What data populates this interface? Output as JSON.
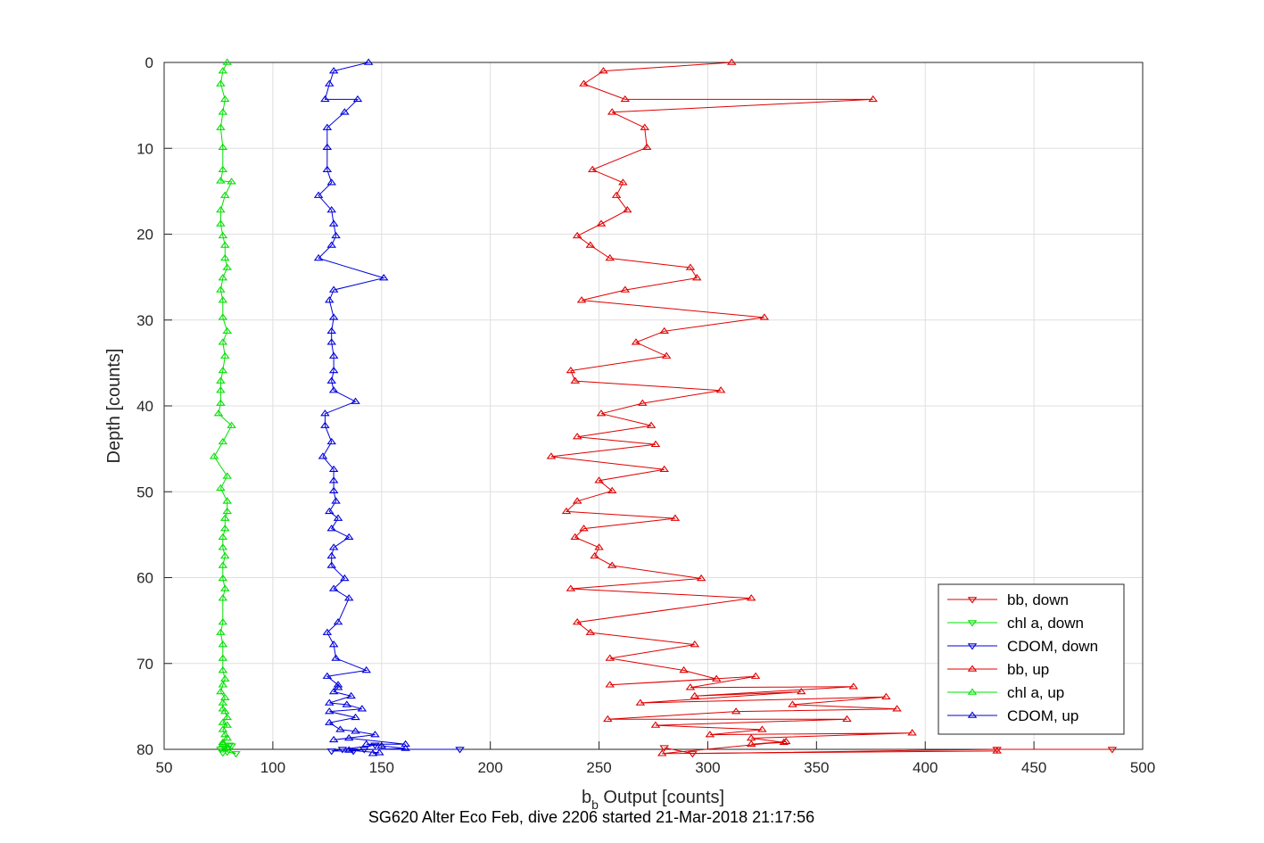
{
  "chart_data": {
    "type": "line",
    "xlabel": "b",
    "xlabel_sub": "b",
    "xlabel_rest": " Output [counts]",
    "ylabel": "Depth [counts]",
    "caption": "SG620 Alter Eco Feb, dive 2206 started 21-Mar-2018 21:17:56",
    "xlim": [
      50,
      500
    ],
    "ylim": [
      0,
      80
    ],
    "y_reversed": true,
    "grid": true,
    "legend_position": "lower-right",
    "xticks": [
      "50",
      "100",
      "150",
      "200",
      "250",
      "300",
      "350",
      "400",
      "450",
      "500"
    ],
    "yticks": [
      "0",
      "10",
      "20",
      "30",
      "40",
      "50",
      "60",
      "70",
      "80"
    ],
    "series": [
      {
        "name": "bb, down",
        "color": "#e00000",
        "marker": "triangle-down",
        "x": [
          486,
          433,
          293,
          280
        ],
        "y": [
          80,
          80,
          80.5,
          79.8
        ]
      },
      {
        "name": "chl a, down",
        "color": "#00e000",
        "marker": "triangle-down",
        "x": [
          80,
          76,
          81,
          79,
          83,
          78,
          77
        ],
        "y": [
          79.5,
          80,
          79.6,
          80.3,
          80.5,
          79.8,
          80.4
        ]
      },
      {
        "name": "CDOM, down",
        "color": "#0000dd",
        "marker": "triangle-down",
        "x": [
          186,
          142,
          137,
          127,
          132,
          147
        ],
        "y": [
          80,
          80,
          80.2,
          80.2,
          80,
          79.5
        ]
      },
      {
        "name": "bb, up",
        "color": "#e00000",
        "marker": "triangle-up",
        "x": [
          311,
          252,
          243,
          262,
          376,
          256,
          271,
          272,
          247,
          261,
          258,
          263,
          251,
          240,
          246,
          255,
          292,
          295,
          262,
          242,
          326,
          280,
          267,
          281,
          237,
          239,
          306,
          270,
          251,
          274,
          240,
          276,
          228,
          280,
          250,
          256,
          240,
          235,
          285,
          243,
          239,
          250,
          248,
          256,
          297,
          237,
          320,
          240,
          246,
          294,
          255,
          289,
          304,
          255,
          322,
          292,
          367,
          294,
          343,
          269,
          382,
          339,
          387,
          313,
          254,
          364,
          276,
          325,
          301,
          394,
          320,
          335,
          320,
          336,
          279,
          433
        ],
        "y": [
          0,
          1,
          2.5,
          4.3,
          4.3,
          5.8,
          7.6,
          9.9,
          12.5,
          14,
          15.5,
          17.2,
          18.8,
          20.2,
          21.3,
          22.8,
          23.9,
          25.1,
          26.5,
          27.7,
          29.7,
          31.3,
          32.6,
          34.2,
          35.9,
          37.1,
          38.2,
          39.7,
          40.9,
          42.3,
          43.6,
          44.5,
          45.9,
          47.4,
          48.7,
          49.9,
          51.1,
          52.3,
          53.1,
          54.3,
          55.3,
          56.5,
          57.5,
          58.6,
          60.1,
          61.3,
          62.4,
          65.2,
          66.4,
          67.8,
          69.4,
          70.8,
          71.8,
          72.5,
          71.5,
          72.8,
          72.7,
          73.8,
          73.3,
          74.6,
          73.9,
          74.8,
          75.3,
          75.6,
          76.5,
          76.5,
          77.2,
          77.7,
          78.3,
          78.1,
          78.7,
          79.2,
          79.4,
          79.1,
          80.5,
          80.2
        ]
      },
      {
        "name": "chl a, up",
        "color": "#00e000",
        "marker": "triangle-up",
        "x": [
          79,
          77,
          76,
          78,
          77,
          76,
          77,
          77,
          76,
          81,
          78,
          76,
          76,
          77,
          78,
          78,
          79,
          77,
          76,
          77,
          77,
          79,
          77,
          78,
          77,
          76,
          76,
          76,
          75,
          81,
          77,
          73,
          79,
          76,
          79,
          79,
          78,
          78,
          77,
          77,
          78,
          77,
          77,
          78,
          77,
          77,
          76,
          77,
          77,
          77,
          78,
          77,
          76,
          78,
          77,
          77,
          78,
          79,
          77,
          79,
          77,
          78,
          79,
          77,
          77
        ],
        "y": [
          0,
          1,
          2.5,
          4.3,
          5.8,
          7.6,
          9.9,
          12.5,
          13.8,
          13.9,
          15.5,
          17.2,
          18.8,
          20.2,
          21.3,
          22.8,
          23.9,
          25.1,
          26.5,
          27.7,
          29.7,
          31.3,
          32.6,
          34.2,
          35.9,
          37.1,
          38.2,
          39.7,
          40.9,
          42.3,
          44.2,
          45.9,
          48.2,
          49.6,
          51.1,
          52.3,
          53.1,
          54.3,
          55.3,
          56.5,
          57.5,
          58.6,
          60.1,
          61.3,
          62.4,
          65.2,
          66.4,
          67.8,
          69.4,
          70.8,
          71.8,
          72.5,
          73.3,
          74,
          74.6,
          75.3,
          75.6,
          76.3,
          76.9,
          77.2,
          77.7,
          78.3,
          78.7,
          79.2,
          79.4
        ]
      },
      {
        "name": "CDOM, up",
        "color": "#0000dd",
        "marker": "triangle-up",
        "x": [
          144,
          128,
          126,
          124,
          139,
          133,
          125,
          125,
          125,
          127,
          121,
          127,
          128,
          129,
          127,
          121,
          151,
          128,
          126,
          128,
          127,
          127,
          128,
          128,
          127,
          128,
          138,
          124,
          124,
          127,
          123,
          128,
          128,
          128,
          129,
          126,
          130,
          127,
          135,
          128,
          127,
          127,
          133,
          128,
          135,
          130,
          125,
          128,
          129,
          143,
          125,
          130,
          130,
          128,
          136,
          126,
          134,
          141,
          126,
          138,
          126,
          131,
          138,
          147,
          128,
          135,
          161,
          143,
          150,
          161,
          135,
          149,
          146
        ],
        "y": [
          0,
          1,
          2.5,
          4.3,
          4.3,
          5.8,
          7.6,
          9.9,
          12.5,
          14,
          15.5,
          17.2,
          18.8,
          20.2,
          21.3,
          22.8,
          25.1,
          26.5,
          27.7,
          29.7,
          31.3,
          32.6,
          34.2,
          35.9,
          37.1,
          38.2,
          39.5,
          40.9,
          42.3,
          44.2,
          45.9,
          47.4,
          48.7,
          49.9,
          51.1,
          52.3,
          53.1,
          54.3,
          55.3,
          56.5,
          57.5,
          58.6,
          60.1,
          61.3,
          62.4,
          65.2,
          66.4,
          67.8,
          69.4,
          70.8,
          71.5,
          72.5,
          72.8,
          73.3,
          73.8,
          74.6,
          74.8,
          75.3,
          75.6,
          76.3,
          76.9,
          77.7,
          77.9,
          78.3,
          78.9,
          78.7,
          79.4,
          79.4,
          79.6,
          79.9,
          80.1,
          80.4,
          80.5
        ]
      }
    ]
  }
}
